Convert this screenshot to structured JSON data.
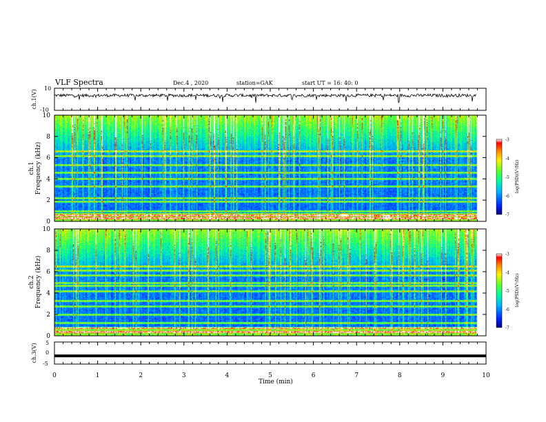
{
  "header": {
    "title": "VLF Spectra",
    "date": "Dec.4 , 2020",
    "station": "station=GAK",
    "start": "start UT =  16: 40: 0"
  },
  "colors": {
    "scale": [
      "#00007a",
      "#0022ff",
      "#00b4ff",
      "#00ff9c",
      "#5aff2a",
      "#fff000",
      "#ff8a00",
      "#ff0000",
      "#ffffff"
    ],
    "waveform": "#000000",
    "ch3_line": "#000000"
  },
  "chart_data": [
    {
      "type": "line",
      "panel": "ch1-waveform",
      "ylabel": "ch.1(V)",
      "ylim": [
        -10,
        10
      ],
      "yticks": [
        "10",
        "-10"
      ],
      "xlim": [
        0,
        10
      ],
      "series": [
        {
          "values_note": "noise waveform",
          "baseline": 3.5,
          "amplitude": 2
        }
      ]
    },
    {
      "type": "heatmap",
      "panel": "ch1-spectrogram",
      "ylabel": "ch.1\nFrequency (kHz)",
      "ylabel_lines": [
        "ch.1",
        "Frequency (kHz)"
      ],
      "ylim": [
        0,
        10
      ],
      "yticks": [
        "0",
        "2",
        "4",
        "6",
        "8",
        "10"
      ],
      "xlim": [
        0,
        10
      ],
      "colorbar": {
        "label": "log(PSD)(V²/Hz)",
        "ticks": [
          "-3",
          "-4",
          "-5",
          "-6",
          "-7"
        ],
        "range": [
          -7,
          -3
        ]
      },
      "bands_khz": [
        0.3,
        0.6,
        1.0,
        1.9,
        2.2,
        3.3,
        4.0,
        4.6,
        5.3,
        6.2,
        6.6
      ],
      "hotspots": [
        {
          "time_min": 6.7,
          "freq_khz": 0.6
        },
        {
          "time_min": 7.7,
          "freq_khz": 0.4
        }
      ]
    },
    {
      "type": "heatmap",
      "panel": "ch2-spectrogram",
      "ylabel": "ch.2\nFrequency (kHz)",
      "ylabel_lines": [
        "ch.2",
        "Frequency (kHz)"
      ],
      "ylim": [
        0,
        10
      ],
      "yticks": [
        "0",
        "2",
        "4",
        "6",
        "8",
        "10"
      ],
      "xlim": [
        0,
        10
      ],
      "colorbar": {
        "label": "log(PSD)(V²/Hz)",
        "ticks": [
          "-3",
          "-4",
          "-5",
          "-6",
          "-7"
        ],
        "range": [
          -7,
          -3
        ]
      },
      "bands_khz": [
        0.4,
        0.8,
        1.2,
        2.0,
        2.8,
        3.3,
        4.2,
        4.7,
        5.0,
        5.7,
        6.1,
        6.5
      ],
      "hotspots": []
    },
    {
      "type": "line",
      "panel": "ch3-waveform",
      "ylabel": "ch.3(V)",
      "ylim": [
        -5,
        5
      ],
      "yticks": [
        "5",
        "0",
        "-5"
      ],
      "xlabel": "Time (min)",
      "xlim": [
        0,
        10
      ],
      "xticks": [
        "0",
        "1",
        "2",
        "3",
        "4",
        "5",
        "6",
        "7",
        "8",
        "9",
        "10"
      ],
      "series": [
        {
          "constant": -1.3
        }
      ]
    }
  ]
}
